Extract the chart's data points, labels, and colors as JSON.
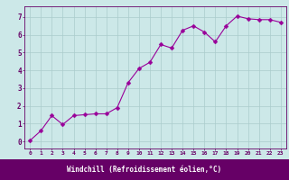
{
  "x": [
    0,
    1,
    2,
    3,
    4,
    5,
    6,
    7,
    8,
    9,
    10,
    11,
    12,
    13,
    14,
    15,
    16,
    17,
    18,
    19,
    20,
    21,
    22,
    23
  ],
  "y": [
    0.05,
    0.6,
    1.45,
    0.95,
    1.45,
    1.5,
    1.55,
    1.55,
    1.9,
    3.3,
    4.1,
    4.45,
    5.45,
    5.25,
    6.25,
    6.5,
    6.15,
    5.6,
    6.5,
    7.05,
    6.9,
    6.85,
    6.85,
    6.7
  ],
  "line_color": "#990099",
  "marker": "D",
  "marker_size": 2.5,
  "bg_color": "#cce8e8",
  "grid_color": "#aacccc",
  "xlabel": "Windchill (Refroidissement éolien,°C)",
  "xlabel_color": "#ffffff",
  "xlabel_bg": "#660066",
  "ylabel_ticks": [
    0,
    1,
    2,
    3,
    4,
    5,
    6,
    7
  ],
  "xlim": [
    -0.5,
    23.5
  ],
  "ylim": [
    -0.4,
    7.6
  ],
  "tick_color": "#660066",
  "axis_color": "#660066"
}
